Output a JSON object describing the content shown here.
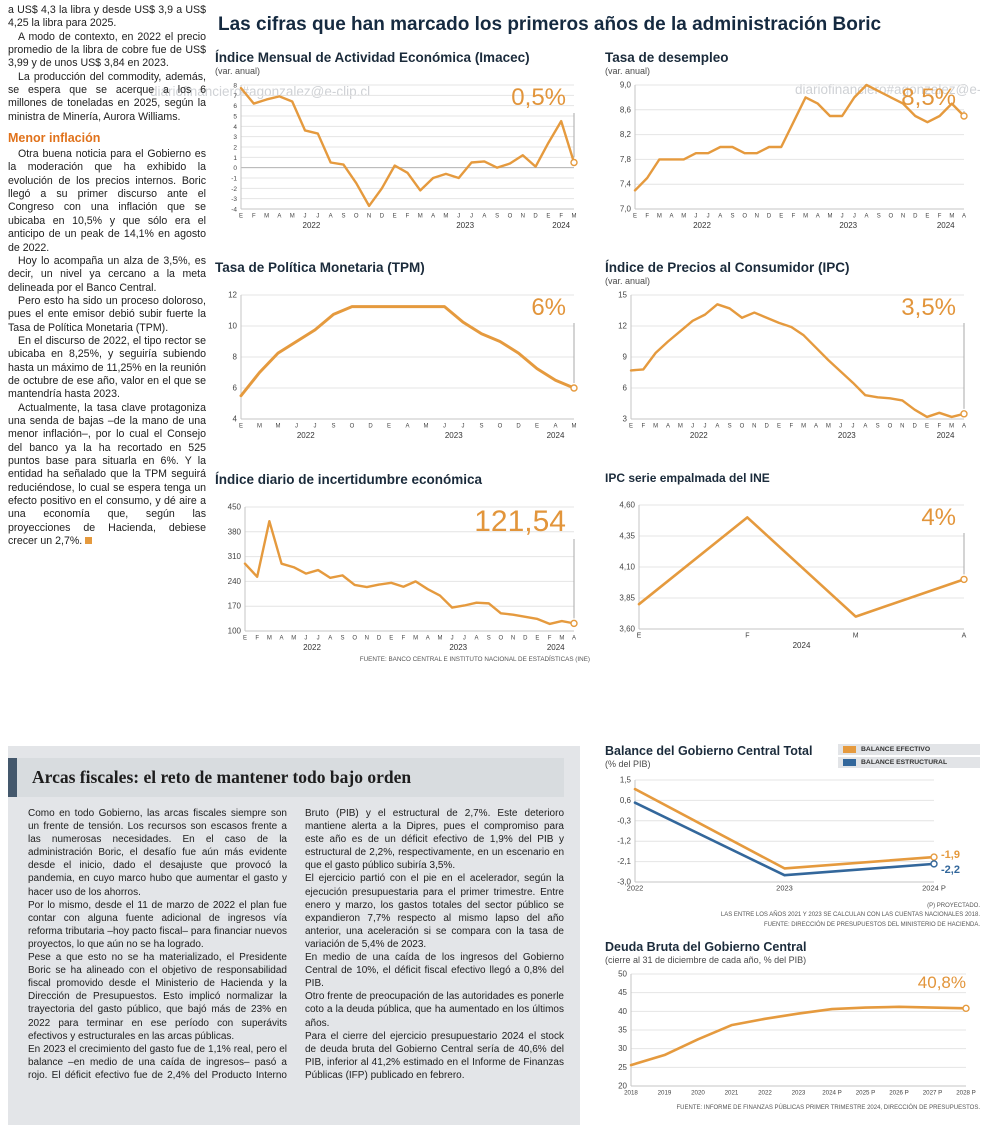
{
  "page": {
    "watermark": "diariofinanciero#agonzalez@e-clip.cl"
  },
  "colors": {
    "accent_orange": "#E59A3E",
    "accent_blue": "#33679B",
    "title_navy": "#152A40",
    "subhead_orange": "#E0721B",
    "box_gray": "#E3E5E8"
  },
  "main_title": "Las cifras que han marcado los primeros años de la administración Boric",
  "article": {
    "intro_paragraphs": [
      "a US$ 4,3 la libra y desde US$ 3,9 a US$ 4,25 la libra para 2025.",
      "A modo de contexto, en 2022 el precio promedio de la libra de cobre fue de US$ 3,99 y de unos US$ 3,84 en 2023.",
      "La producción del commodity, además, se espera que se acerque a los 6 millones de toneladas en 2025, según la ministra de Minería, Aurora Williams."
    ],
    "subhead": "Menor inflación",
    "inflation_paragraphs": [
      "Otra buena noticia para el Gobierno es la moderación que ha exhibido la evolución de los precios internos. Boric llegó a su primer discurso ante el Congreso con una inflación que se ubicaba en 10,5% y que sólo era el anticipo de un peak de 14,1% en agosto de 2022.",
      "Hoy lo acompaña un alza de 3,5%, es decir, un nivel ya cercano a la meta delineada por el Banco Central.",
      "Pero esto ha sido un proceso doloroso, pues el ente emisor debió subir fuerte la Tasa de Política Monetaria (TPM).",
      "En el discurso de 2022, el tipo rector se ubicaba en 8,25%, y seguiría subiendo hasta un máximo de 11,25% en la reunión de octubre de ese año, valor en el que se mantendría hasta 2023.",
      "Actualmente, la tasa clave protagoniza una senda de bajas –de la mano de una menor inflación–, por lo cual el Consejo del banco ya la ha recortado en 525 puntos base para situarla en 6%. Y la entidad ha señalado que la TPM seguirá reduciéndose, lo cual se espera tenga un efecto positivo en el consumo, y dé aire a una economía que, según las proyecciones de Hacienda, debiese crecer un 2,7%."
    ]
  },
  "fiscal": {
    "title": "Arcas fiscales: el reto de mantener todo bajo orden",
    "paragraphs": [
      "Como en todo Gobierno, las arcas fiscales siempre son un frente de tensión. Los recursos son escasos frente a las numerosas necesidades. En el caso de la administración Boric, el desafío fue aún más evidente desde el inicio, dado el desajuste que provocó la pandemia, en cuyo marco hubo que aumentar el gasto y hacer uso de los ahorros.",
      "Por lo mismo, desde el 11 de marzo de 2022 el plan fue contar con alguna fuente adicional de ingresos vía reforma tributaria –hoy pacto fiscal– para financiar nuevos proyectos, lo que aún no se ha logrado.",
      "Pese a que esto no se ha materializado, el Presidente Boric se ha alineado con el objetivo de responsabilidad fiscal promovido desde el Ministerio de Hacienda y la Dirección de Presupuestos. Esto implicó normalizar la trayectoria del gasto público, que bajó más de 23% en 2022 para terminar en ese período con superávits efectivos y estructurales en las arcas públicas.",
      "En 2023 el crecimiento del gasto fue de 1,1% real, pero el balance –en medio de una caída de ingresos– pasó a rojo. El déficit efectivo fue de 2,4% del Producto Interno Bruto (PIB) y el estructural de 2,7%. Este deterioro mantiene alerta a la Dipres, pues el compromiso para este año es de un déficit efectivo de 1,9% del PIB y estructural de 2,2%, respectivamente, en un escenario en que el gasto público subiría 3,5%.",
      "El ejercicio partió con el pie en el acelerador, según la ejecución presupuestaria para el primer trimestre. Entre enero y marzo, los gastos totales del sector público se expandieron 7,7% respecto al mismo lapso del año anterior, una aceleración si se compara con la tasa de variación de 5,4% de 2023.",
      "En medio de una caída de los ingresos del Gobierno Central de 10%, el déficit fiscal efectivo llegó a 0,8% del PIB.",
      "Otro frente de preocupación de las autoridades es ponerle coto a la deuda pública, que ha aumentado en los últimos años.",
      "Para el cierre del ejercicio presupuestario 2024 el stock de deuda bruta del Gobierno Central sería de 40,6% del PIB, inferior al 41,2% estimado en el Informe de Finanzas Públicas (IFP) publicado en febrero."
    ]
  },
  "chart_data": [
    {
      "type": "line",
      "title": "Índice Mensual de Actividad Económica (Imacec)",
      "subtitle": "(var. anual)",
      "highlight": "0,5%",
      "highlight_size": 24,
      "highlight_dy": 20,
      "end_line": true,
      "zero_line": true,
      "ylim": [
        -4,
        8
      ],
      "ytick_values": [
        8,
        7,
        6,
        5,
        4,
        3,
        2,
        1,
        0,
        -1,
        -2,
        -3,
        -4
      ],
      "ytick_labels": [
        "8",
        "7",
        "6",
        "5",
        "4",
        "3",
        "2",
        "1",
        "0",
        "-1",
        "-2",
        "-3",
        "-4"
      ],
      "ytick_font": 6.5,
      "margins": {
        "l": 26,
        "r": 16,
        "t": 6,
        "b": 22
      },
      "x_labels": [
        "E",
        "F",
        "M",
        "A",
        "M",
        "J",
        "J",
        "A",
        "S",
        "O",
        "N",
        "D",
        "E",
        "F",
        "M",
        "A",
        "M",
        "J",
        "J",
        "A",
        "S",
        "O",
        "N",
        "D",
        "E",
        "F",
        "M"
      ],
      "years": [
        {
          "label": "2022",
          "start": 0,
          "end": 11
        },
        {
          "label": "2023",
          "start": 12,
          "end": 23
        },
        {
          "label": "2024",
          "start": 24,
          "end": 26
        }
      ],
      "series": [
        {
          "name": "Imacec",
          "color": "#E59A3E",
          "width": 2.4,
          "values": [
            7.7,
            6.2,
            6.6,
            6.9,
            6.4,
            3.6,
            3.3,
            0.5,
            0.3,
            -1.5,
            -3.7,
            -2.0,
            0.2,
            -0.5,
            -2.2,
            -1.0,
            -0.6,
            -1.0,
            0.5,
            0.6,
            0.0,
            0.4,
            1.2,
            0.1,
            2.4,
            4.5,
            0.5
          ]
        }
      ]
    },
    {
      "type": "line",
      "title": "Tasa de desempleo",
      "subtitle": "(var. anual)",
      "highlight": "8,5%",
      "highlight_size": 24,
      "highlight_dy": 20,
      "end_line": true,
      "ylim": [
        7.0,
        9.0
      ],
      "ytick_values": [
        9.0,
        8.6,
        8.2,
        7.8,
        7.4,
        7.0
      ],
      "ytick_labels": [
        "9,0",
        "8,6",
        "8,2",
        "7,8",
        "7,4",
        "7,0"
      ],
      "margins": {
        "l": 30,
        "r": 16,
        "t": 6,
        "b": 22
      },
      "x_labels": [
        "E",
        "F",
        "M",
        "A",
        "M",
        "J",
        "J",
        "A",
        "S",
        "O",
        "N",
        "D",
        "E",
        "F",
        "M",
        "A",
        "M",
        "J",
        "J",
        "A",
        "S",
        "O",
        "N",
        "D",
        "E",
        "F",
        "M",
        "A"
      ],
      "years": [
        {
          "label": "2022",
          "start": 0,
          "end": 11
        },
        {
          "label": "2023",
          "start": 12,
          "end": 23
        },
        {
          "label": "2024",
          "start": 24,
          "end": 27
        }
      ],
      "series": [
        {
          "name": "Tasa de desempleo",
          "color": "#E59A3E",
          "width": 2.4,
          "values": [
            7.3,
            7.5,
            7.8,
            7.8,
            7.8,
            7.9,
            7.9,
            8.0,
            8.0,
            7.9,
            7.9,
            8.0,
            8.0,
            8.4,
            8.8,
            8.7,
            8.5,
            8.5,
            8.8,
            9.0,
            8.9,
            8.8,
            8.7,
            8.5,
            8.4,
            8.5,
            8.7,
            8.5
          ]
        }
      ]
    },
    {
      "type": "line",
      "title": "Tasa de Política Monetaria (TPM)",
      "subtitle": "",
      "highlight": "6%",
      "highlight_size": 24,
      "highlight_dy": 20,
      "end_line": true,
      "ylim": [
        4,
        12
      ],
      "ytick_values": [
        12,
        10,
        8,
        6,
        4
      ],
      "ytick_labels": [
        "12",
        "10",
        "8",
        "6",
        "4"
      ],
      "margins": {
        "l": 26,
        "r": 16,
        "t": 6,
        "b": 22
      },
      "x_labels": [
        "E",
        "M",
        "M",
        "J",
        "J",
        "S",
        "O",
        "D",
        "E",
        "A",
        "M",
        "J",
        "J",
        "S",
        "O",
        "D",
        "E",
        "A",
        "M"
      ],
      "years": [
        {
          "label": "2022",
          "start": 0,
          "end": 7
        },
        {
          "label": "2023",
          "start": 8,
          "end": 15
        },
        {
          "label": "2024",
          "start": 16,
          "end": 18
        }
      ],
      "series": [
        {
          "name": "TPM",
          "color": "#E59A3E",
          "width": 3,
          "values": [
            5.5,
            7.0,
            8.25,
            9.0,
            9.75,
            10.75,
            11.25,
            11.25,
            11.25,
            11.25,
            11.25,
            11.25,
            10.25,
            9.5,
            9.0,
            8.25,
            7.25,
            6.5,
            6.0
          ]
        }
      ]
    },
    {
      "type": "line",
      "title": "Índice de Precios al Consumidor (IPC)",
      "subtitle": "(var. anual)",
      "highlight": "3,5%",
      "highlight_size": 24,
      "highlight_dy": 20,
      "end_line": true,
      "ylim": [
        3,
        15
      ],
      "ytick_values": [
        15,
        12,
        9,
        6,
        3
      ],
      "ytick_labels": [
        "15",
        "12",
        "9",
        "6",
        "3"
      ],
      "margins": {
        "l": 26,
        "r": 16,
        "t": 6,
        "b": 22
      },
      "x_labels": [
        "E",
        "F",
        "M",
        "A",
        "M",
        "J",
        "J",
        "A",
        "S",
        "O",
        "N",
        "D",
        "E",
        "F",
        "M",
        "A",
        "M",
        "J",
        "J",
        "A",
        "S",
        "O",
        "N",
        "D",
        "E",
        "F",
        "M",
        "A"
      ],
      "years": [
        {
          "label": "2022",
          "start": 0,
          "end": 11
        },
        {
          "label": "2023",
          "start": 12,
          "end": 23
        },
        {
          "label": "2024",
          "start": 24,
          "end": 27
        }
      ],
      "series": [
        {
          "name": "IPC",
          "color": "#E59A3E",
          "width": 2.4,
          "values": [
            7.7,
            7.8,
            9.4,
            10.5,
            11.5,
            12.5,
            13.1,
            14.1,
            13.7,
            12.8,
            13.3,
            12.8,
            12.3,
            11.9,
            11.1,
            9.9,
            8.7,
            7.6,
            6.5,
            5.3,
            5.1,
            5.0,
            4.8,
            3.9,
            3.2,
            3.6,
            3.2,
            3.5
          ]
        }
      ]
    },
    {
      "type": "line",
      "title": "Índice diario de incertidumbre económica",
      "subtitle": "",
      "highlight": "121,54",
      "highlight_size": 30,
      "highlight_dy": 24,
      "end_line": true,
      "source": "FUENTE: BANCO CENTRAL E INSTITUTO NACIONAL DE ESTADÍSTICAS (INE)",
      "ylim": [
        100,
        450
      ],
      "ytick_values": [
        450,
        380,
        310,
        240,
        170,
        100
      ],
      "ytick_labels": [
        "450",
        "380",
        "310",
        "240",
        "170",
        "100"
      ],
      "margins": {
        "l": 30,
        "r": 16,
        "t": 6,
        "b": 22
      },
      "x_labels": [
        "E",
        "F",
        "M",
        "A",
        "M",
        "J",
        "J",
        "A",
        "S",
        "O",
        "N",
        "D",
        "E",
        "F",
        "M",
        "A",
        "M",
        "J",
        "J",
        "A",
        "S",
        "O",
        "N",
        "D",
        "E",
        "F",
        "M",
        "A"
      ],
      "years": [
        {
          "label": "2022",
          "start": 0,
          "end": 11
        },
        {
          "label": "2023",
          "start": 12,
          "end": 23
        },
        {
          "label": "2024",
          "start": 24,
          "end": 27
        }
      ],
      "series": [
        {
          "name": "Incertidumbre económica",
          "color": "#E59A3E",
          "width": 2.4,
          "values": [
            290,
            253,
            410,
            290,
            280,
            262,
            272,
            250,
            257,
            230,
            224,
            231,
            236,
            225,
            240,
            218,
            200,
            166,
            172,
            180,
            178,
            150,
            146,
            140,
            134,
            120,
            128,
            121.54
          ]
        }
      ]
    },
    {
      "type": "line",
      "title": "IPC serie empalmada del INE",
      "subtitle": "",
      "highlight": "4%",
      "highlight_size": 24,
      "highlight_dy": 20,
      "end_line": true,
      "ylim": [
        3.6,
        4.6
      ],
      "ytick_values": [
        4.6,
        4.35,
        4.1,
        3.85,
        3.6
      ],
      "ytick_labels": [
        "4,60",
        "4,35",
        "4,10",
        "3,85",
        "3,60"
      ],
      "margins": {
        "l": 34,
        "r": 16,
        "t": 6,
        "b": 22
      },
      "xtick_font": 7,
      "x_labels": [
        "E",
        "F",
        "M",
        "A"
      ],
      "years": [
        {
          "label": "2024",
          "start": 0,
          "end": 3
        }
      ],
      "series": [
        {
          "name": "IPC serie empalmada",
          "color": "#E59A3E",
          "width": 2.6,
          "values": [
            3.8,
            4.5,
            3.7,
            4.0
          ]
        }
      ]
    },
    {
      "type": "line",
      "title": "Balance del Gobierno Central Total",
      "subtitle": "(% del PIB)",
      "legend": [
        "BALANCE EFECTIVO",
        "BALANCE ESTRUCTURAL"
      ],
      "footnotes": [
        "(P) PROYECTADO.",
        "LAS ENTRE LOS AÑOS 2021 Y 2023 SE CALCULAN CON LAS CUENTAS NACIONALES 2018.",
        "FUENTE: DIRECCIÓN DE PRESUPUESTOS DEL MINISTERIO DE HACIENDA."
      ],
      "ylim": [
        -3.0,
        1.5
      ],
      "ytick_values": [
        1.5,
        0.6,
        -0.3,
        -1.2,
        -2.1,
        -3.0
      ],
      "ytick_labels": [
        "1,5",
        "0,6",
        "-0,3",
        "-1,2",
        "-2,1",
        "-3,0"
      ],
      "margins": {
        "l": 30,
        "r": 46,
        "t": 8,
        "b": 18
      },
      "xtick_font": 7.5,
      "x_labels": [
        "2022",
        "2023",
        "2024 P"
      ],
      "series": [
        {
          "name": "BALANCE EFECTIVO",
          "color": "#E59A3E",
          "width": 2.6,
          "end_label": "-1,9",
          "end_label_dy": -2,
          "values": [
            1.1,
            -2.4,
            -1.9
          ]
        },
        {
          "name": "BALANCE ESTRUCTURAL",
          "color": "#33679B",
          "width": 2.6,
          "end_label": "-2,2",
          "end_label_dy": 6,
          "values": [
            0.5,
            -2.7,
            -2.2
          ]
        }
      ]
    },
    {
      "type": "line",
      "title": "Deuda Bruta del Gobierno Central",
      "subtitle": "(cierre al 31 de diciembre de cada año, % del PIB)",
      "highlight": "40,8%",
      "highlight_size": 17,
      "highlight_dy": 14,
      "highlight_x": "right",
      "footnotes": [
        "FUENTE: INFORME DE FINANZAS PÚBLICAS PRIMER TRIMESTRE 2024, DIRECCIÓN DE PRESUPUESTOS."
      ],
      "ylim": [
        20,
        50
      ],
      "ytick_values": [
        50,
        45,
        40,
        35,
        30,
        25,
        20
      ],
      "ytick_labels": [
        "50",
        "45",
        "40",
        "35",
        "30",
        "25",
        "20"
      ],
      "margins": {
        "l": 26,
        "r": 14,
        "t": 6,
        "b": 16
      },
      "xtick_font": 6.2,
      "x_labels": [
        "2018",
        "2019",
        "2020",
        "2021",
        "2022",
        "2023",
        "2024 P",
        "2025 P",
        "2026 P",
        "2027 P",
        "2028 P"
      ],
      "series": [
        {
          "name": "Deuda bruta",
          "color": "#E59A3E",
          "width": 2.6,
          "values": [
            25.6,
            28.3,
            32.5,
            36.3,
            38.0,
            39.4,
            40.6,
            41.0,
            41.2,
            41.0,
            40.8
          ]
        }
      ]
    }
  ]
}
